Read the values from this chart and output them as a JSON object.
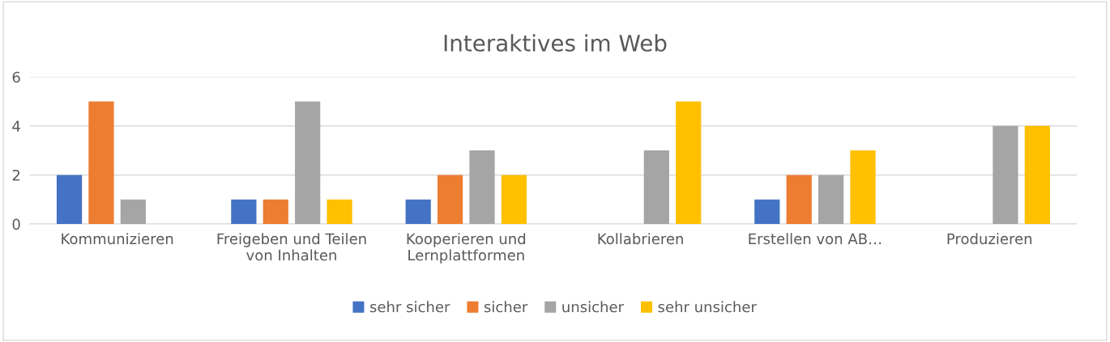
{
  "chart_data": {
    "type": "bar",
    "title": "Interaktives im Web",
    "categories": [
      "Kommunizieren",
      "Freigeben und Teilen von Inhalten",
      "Kooperieren und Lernplattformen",
      "Kollabrieren",
      "Erstellen von AB…",
      "Produzieren"
    ],
    "series": [
      {
        "name": "sehr sicher",
        "color": "#4472c4",
        "values": [
          2,
          1,
          1,
          null,
          1,
          null
        ]
      },
      {
        "name": "sicher",
        "color": "#ed7d31",
        "values": [
          5,
          1,
          2,
          null,
          2,
          null
        ]
      },
      {
        "name": "unsicher",
        "color": "#a5a5a5",
        "values": [
          1,
          5,
          3,
          3,
          2,
          4
        ]
      },
      {
        "name": "sehr unsicher",
        "color": "#ffc000",
        "values": [
          null,
          1,
          2,
          5,
          3,
          4
        ]
      }
    ],
    "ylim": [
      0,
      6
    ],
    "yticks": [
      0,
      2,
      4,
      6
    ],
    "grid": "y",
    "legend": "bottom"
  }
}
